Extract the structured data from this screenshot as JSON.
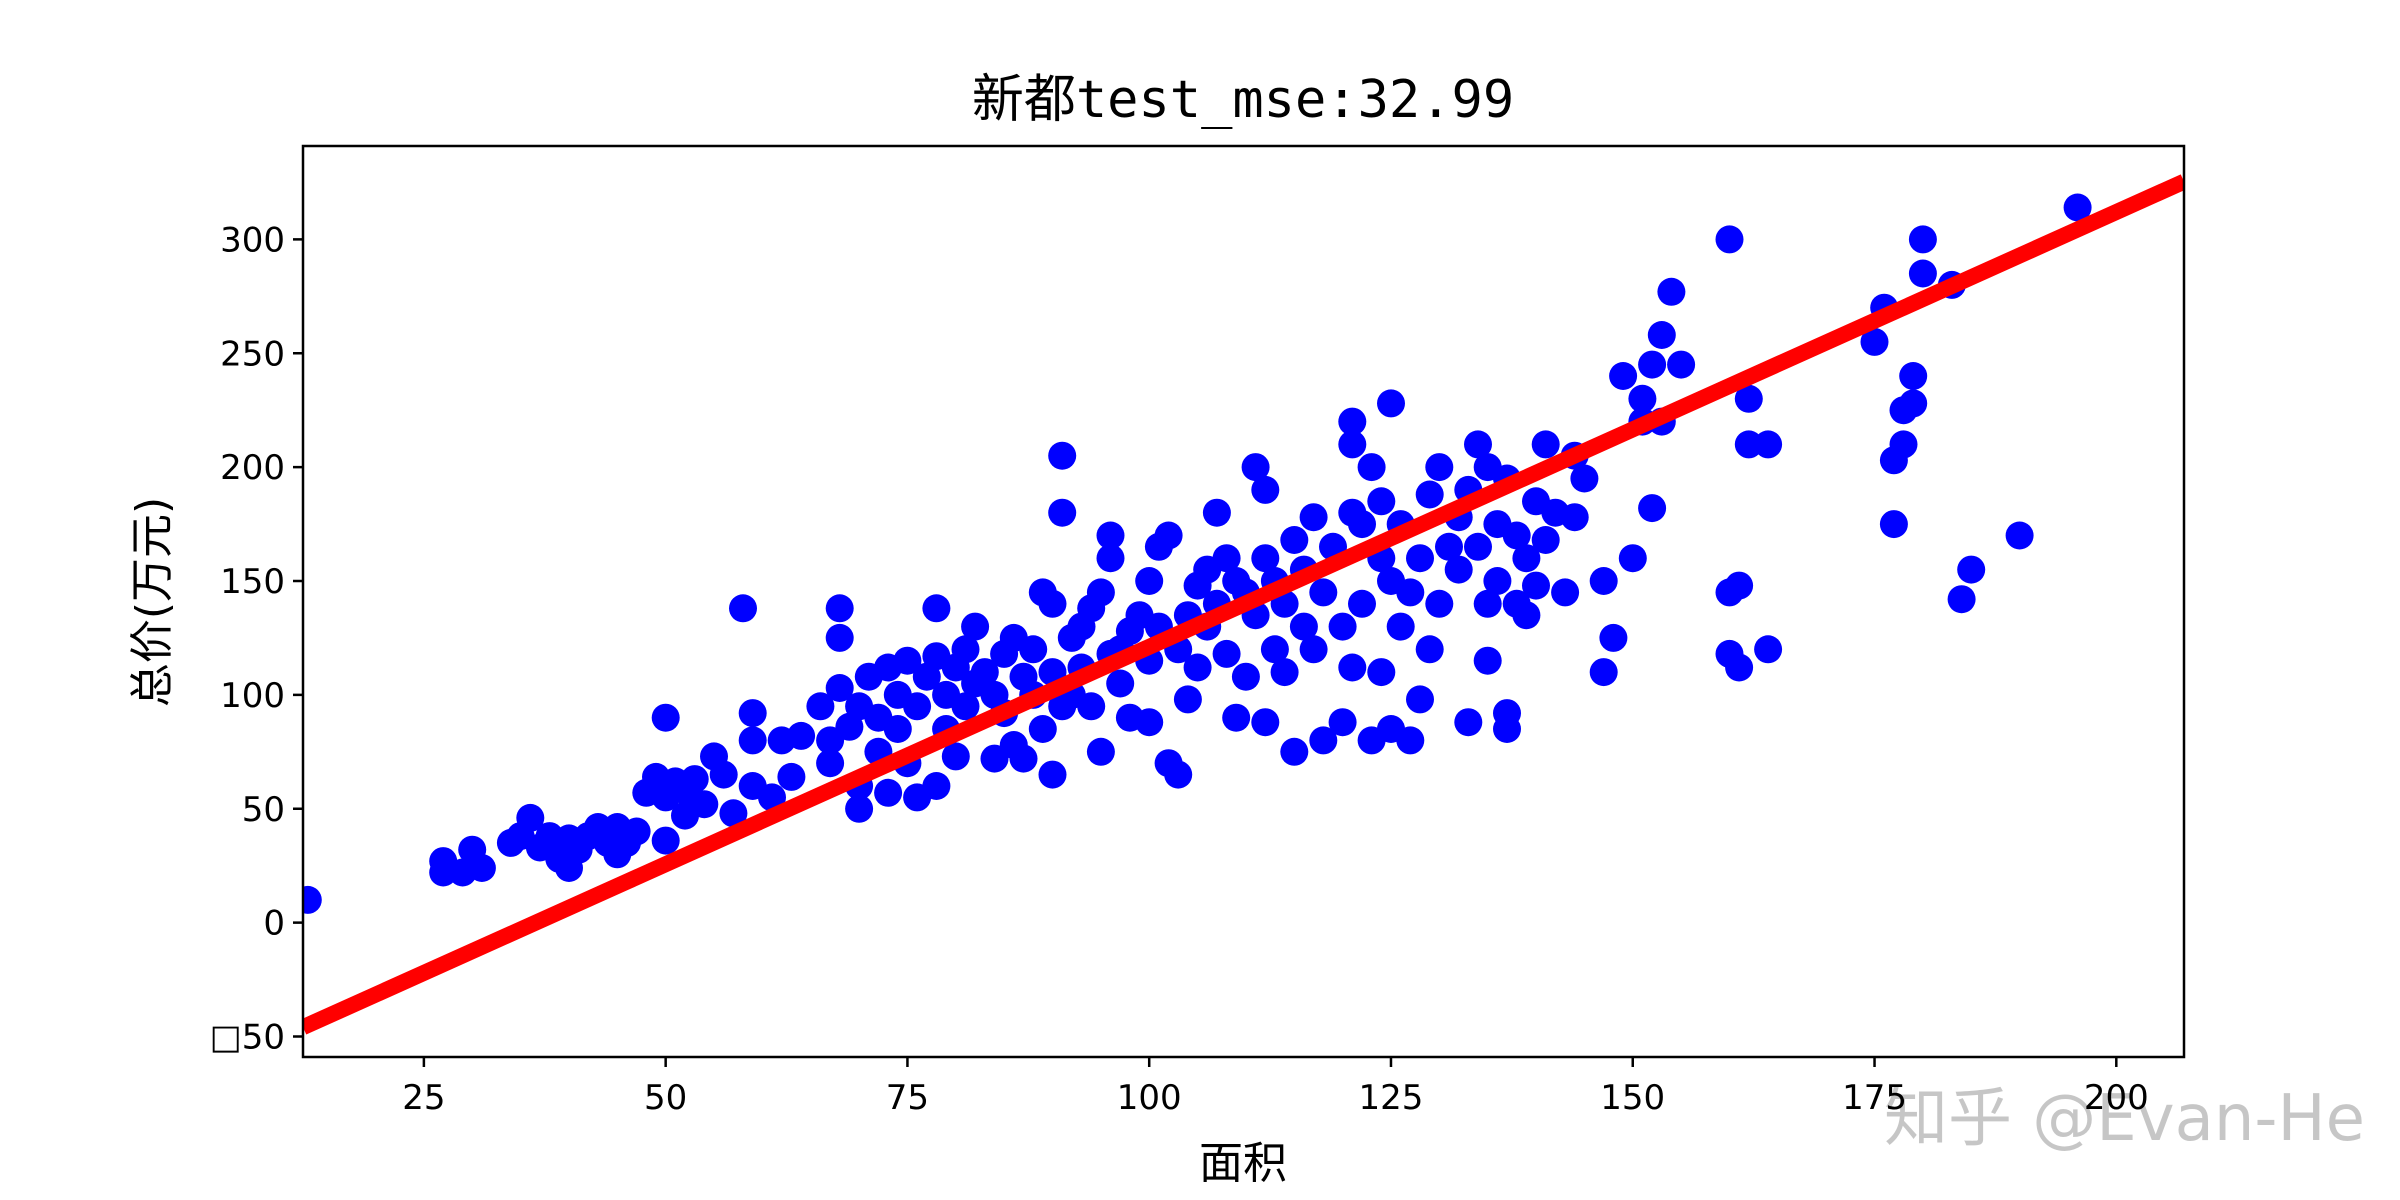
{
  "chart_data": {
    "type": "scatter",
    "title": "新都test_mse:32.99",
    "xlabel": "面积",
    "ylabel": "总价(万元)",
    "xlim": [
      12.5,
      207
    ],
    "ylim": [
      -59,
      341
    ],
    "xticks": [
      {
        "value": 25,
        "label": "25"
      },
      {
        "value": 50,
        "label": "50"
      },
      {
        "value": 75,
        "label": "75"
      },
      {
        "value": 100,
        "label": "100"
      },
      {
        "value": 125,
        "label": "125"
      },
      {
        "value": 150,
        "label": "150"
      },
      {
        "value": 175,
        "label": "175"
      },
      {
        "value": 200,
        "label": "200"
      }
    ],
    "yticks": [
      {
        "value": -50,
        "label": "□50"
      },
      {
        "value": 0,
        "label": "0"
      },
      {
        "value": 50,
        "label": "50"
      },
      {
        "value": 100,
        "label": "100"
      },
      {
        "value": 150,
        "label": "150"
      },
      {
        "value": 200,
        "label": "200"
      },
      {
        "value": 250,
        "label": "250"
      },
      {
        "value": 300,
        "label": "300"
      }
    ],
    "grid": false,
    "legend": false,
    "colors": {
      "points": "#0000ff",
      "fit_line": "#ff0000"
    },
    "series": [
      {
        "kind": "scatter",
        "points": [
          [
            13,
            10
          ],
          [
            27,
            27
          ],
          [
            27,
            22
          ],
          [
            29,
            22
          ],
          [
            30,
            32
          ],
          [
            31,
            24
          ],
          [
            34,
            35
          ],
          [
            35,
            38
          ],
          [
            36,
            46
          ],
          [
            37,
            33
          ],
          [
            38,
            38
          ],
          [
            39,
            28
          ],
          [
            40,
            24
          ],
          [
            40,
            37
          ],
          [
            41,
            32
          ],
          [
            42,
            38
          ],
          [
            43,
            42
          ],
          [
            44,
            35
          ],
          [
            45,
            42
          ],
          [
            45,
            30
          ],
          [
            46,
            35
          ],
          [
            47,
            40
          ],
          [
            48,
            57
          ],
          [
            49,
            64
          ],
          [
            50,
            36
          ],
          [
            50,
            55
          ],
          [
            50,
            90
          ],
          [
            51,
            62
          ],
          [
            52,
            47
          ],
          [
            52,
            58
          ],
          [
            53,
            63
          ],
          [
            54,
            52
          ],
          [
            55,
            73
          ],
          [
            56,
            65
          ],
          [
            57,
            48
          ],
          [
            58,
            138
          ],
          [
            59,
            60
          ],
          [
            59,
            80
          ],
          [
            59,
            92
          ],
          [
            61,
            55
          ],
          [
            62,
            80
          ],
          [
            63,
            64
          ],
          [
            64,
            82
          ],
          [
            66,
            95
          ],
          [
            67,
            80
          ],
          [
            67,
            70
          ],
          [
            68,
            103
          ],
          [
            68,
            138
          ],
          [
            68,
            125
          ],
          [
            69,
            86
          ],
          [
            70,
            95
          ],
          [
            70,
            60
          ],
          [
            70,
            50
          ],
          [
            71,
            108
          ],
          [
            72,
            90
          ],
          [
            72,
            75
          ],
          [
            73,
            112
          ],
          [
            73,
            57
          ],
          [
            74,
            100
          ],
          [
            74,
            85
          ],
          [
            75,
            115
          ],
          [
            75,
            70
          ],
          [
            76,
            55
          ],
          [
            76,
            95
          ],
          [
            77,
            108
          ],
          [
            78,
            138
          ],
          [
            78,
            117
          ],
          [
            78,
            60
          ],
          [
            79,
            100
          ],
          [
            79,
            85
          ],
          [
            80,
            112
          ],
          [
            80,
            73
          ],
          [
            81,
            120
          ],
          [
            81,
            95
          ],
          [
            82,
            130
          ],
          [
            82,
            105
          ],
          [
            83,
            110
          ],
          [
            84,
            100
          ],
          [
            84,
            72
          ],
          [
            85,
            118
          ],
          [
            85,
            92
          ],
          [
            86,
            125
          ],
          [
            86,
            78
          ],
          [
            87,
            108
          ],
          [
            87,
            72
          ],
          [
            88,
            100
          ],
          [
            88,
            120
          ],
          [
            89,
            145
          ],
          [
            89,
            85
          ],
          [
            90,
            140
          ],
          [
            90,
            110
          ],
          [
            90,
            65
          ],
          [
            91,
            205
          ],
          [
            91,
            180
          ],
          [
            91,
            95
          ],
          [
            92,
            125
          ],
          [
            92,
            100
          ],
          [
            93,
            130
          ],
          [
            93,
            112
          ],
          [
            94,
            138
          ],
          [
            94,
            95
          ],
          [
            95,
            145
          ],
          [
            95,
            75
          ],
          [
            96,
            170
          ],
          [
            96,
            118
          ],
          [
            96,
            160
          ],
          [
            97,
            120
          ],
          [
            97,
            105
          ],
          [
            98,
            128
          ],
          [
            98,
            90
          ],
          [
            99,
            135
          ],
          [
            100,
            150
          ],
          [
            100,
            115
          ],
          [
            100,
            88
          ],
          [
            101,
            165
          ],
          [
            101,
            130
          ],
          [
            102,
            170
          ],
          [
            102,
            70
          ],
          [
            103,
            120
          ],
          [
            103,
            65
          ],
          [
            104,
            135
          ],
          [
            104,
            98
          ],
          [
            105,
            148
          ],
          [
            105,
            112
          ],
          [
            106,
            155
          ],
          [
            106,
            130
          ],
          [
            107,
            140
          ],
          [
            107,
            180
          ],
          [
            108,
            160
          ],
          [
            108,
            118
          ],
          [
            109,
            150
          ],
          [
            109,
            90
          ],
          [
            110,
            145
          ],
          [
            110,
            108
          ],
          [
            111,
            135
          ],
          [
            111,
            200
          ],
          [
            112,
            190
          ],
          [
            112,
            160
          ],
          [
            112,
            88
          ],
          [
            113,
            150
          ],
          [
            113,
            120
          ],
          [
            114,
            140
          ],
          [
            114,
            110
          ],
          [
            115,
            168
          ],
          [
            115,
            75
          ],
          [
            116,
            155
          ],
          [
            116,
            130
          ],
          [
            117,
            178
          ],
          [
            117,
            120
          ],
          [
            118,
            145
          ],
          [
            118,
            80
          ],
          [
            119,
            165
          ],
          [
            120,
            130
          ],
          [
            120,
            88
          ],
          [
            121,
            220
          ],
          [
            121,
            210
          ],
          [
            121,
            180
          ],
          [
            121,
            112
          ],
          [
            122,
            175
          ],
          [
            122,
            140
          ],
          [
            123,
            200
          ],
          [
            123,
            80
          ],
          [
            124,
            160
          ],
          [
            124,
            185
          ],
          [
            124,
            110
          ],
          [
            125,
            228
          ],
          [
            125,
            150
          ],
          [
            125,
            85
          ],
          [
            126,
            175
          ],
          [
            126,
            130
          ],
          [
            127,
            145
          ],
          [
            127,
            80
          ],
          [
            128,
            160
          ],
          [
            128,
            98
          ],
          [
            129,
            188
          ],
          [
            129,
            120
          ],
          [
            130,
            200
          ],
          [
            130,
            140
          ],
          [
            131,
            165
          ],
          [
            132,
            178
          ],
          [
            132,
            155
          ],
          [
            133,
            190
          ],
          [
            133,
            88
          ],
          [
            134,
            210
          ],
          [
            134,
            165
          ],
          [
            135,
            200
          ],
          [
            135,
            140
          ],
          [
            135,
            115
          ],
          [
            136,
            175
          ],
          [
            136,
            150
          ],
          [
            137,
            195
          ],
          [
            137,
            92
          ],
          [
            137,
            85
          ],
          [
            138,
            170
          ],
          [
            138,
            140
          ],
          [
            139,
            160
          ],
          [
            139,
            135
          ],
          [
            140,
            185
          ],
          [
            140,
            148
          ],
          [
            141,
            210
          ],
          [
            141,
            168
          ],
          [
            142,
            180
          ],
          [
            143,
            145
          ],
          [
            144,
            205
          ],
          [
            144,
            178
          ],
          [
            145,
            195
          ],
          [
            147,
            150
          ],
          [
            147,
            110
          ],
          [
            148,
            125
          ],
          [
            149,
            240
          ],
          [
            150,
            160
          ],
          [
            151,
            230
          ],
          [
            151,
            220
          ],
          [
            152,
            245
          ],
          [
            152,
            182
          ],
          [
            153,
            258
          ],
          [
            153,
            220
          ],
          [
            154,
            277
          ],
          [
            155,
            245
          ],
          [
            160,
            300
          ],
          [
            160,
            145
          ],
          [
            160,
            118
          ],
          [
            161,
            148
          ],
          [
            161,
            112
          ],
          [
            162,
            210
          ],
          [
            162,
            230
          ],
          [
            164,
            120
          ],
          [
            164,
            210
          ],
          [
            175,
            255
          ],
          [
            176,
            270
          ],
          [
            177,
            175
          ],
          [
            177,
            203
          ],
          [
            178,
            225
          ],
          [
            178,
            210
          ],
          [
            179,
            240
          ],
          [
            179,
            228
          ],
          [
            180,
            300
          ],
          [
            180,
            285
          ],
          [
            183,
            280
          ],
          [
            184,
            142
          ],
          [
            185,
            155
          ],
          [
            190,
            170
          ],
          [
            196,
            314
          ]
        ]
      },
      {
        "kind": "line",
        "slope": 1.909,
        "intercept": -69.8
      }
    ]
  },
  "watermark": {
    "text": "知乎 @Evan-He"
  }
}
